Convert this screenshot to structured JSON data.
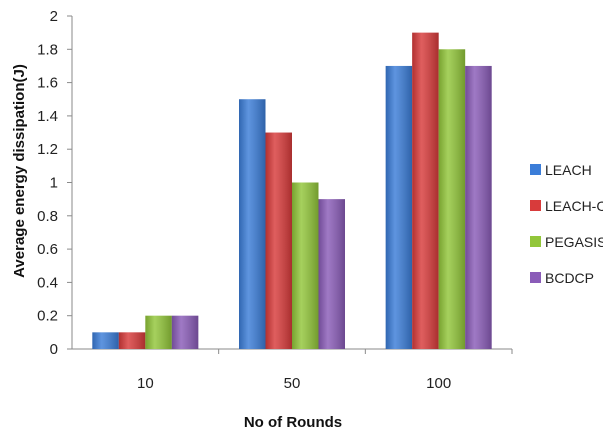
{
  "chart_data": {
    "type": "bar",
    "title": "",
    "xlabel": "No of Rounds",
    "ylabel": "Average energy dissipation(J)",
    "categories": [
      "10",
      "50",
      "100"
    ],
    "ylim": [
      0,
      2
    ],
    "yticks": [
      "0",
      "0.2",
      "0.4",
      "0.6",
      "0.8",
      "1",
      "1.2",
      "1.4",
      "1.6",
      "1.8",
      "2"
    ],
    "grid": false,
    "legend_position": "right",
    "series": [
      {
        "name": "LEACH",
        "values": [
          0.1,
          1.5,
          1.7
        ],
        "color": "#3b7dd8"
      },
      {
        "name": "LEACH-C",
        "values": [
          0.1,
          1.3,
          1.9
        ],
        "color": "#d83b3b"
      },
      {
        "name": "PEGASIS",
        "values": [
          0.2,
          1.0,
          1.8
        ],
        "color": "#92c63a"
      },
      {
        "name": "BCDCP",
        "values": [
          0.2,
          0.9,
          1.7
        ],
        "color": "#8a5cb8"
      }
    ]
  }
}
